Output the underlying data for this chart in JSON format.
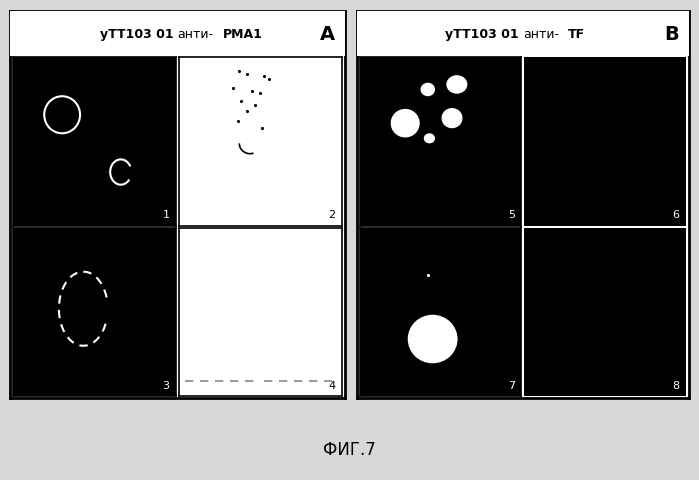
{
  "fig_width": 6.99,
  "fig_height": 4.81,
  "bg_color": "#d8d8d8",
  "title_A": "yTT103 01 анти-PMA1",
  "title_A_bold_part": "yTT103 01 ",
  "title_A_normal_part": "анти-",
  "title_A_bold2": "PMA1",
  "title_B": "yTT103 01 анти-TF",
  "title_B_bold_part": "yTT103 01 ",
  "title_B_normal_part": "анти-",
  "title_B_bold2": "TF",
  "label_A": "A",
  "label_B": "B",
  "caption": "ФИГ.7",
  "panel_labels": [
    "1",
    "2",
    "3",
    "4",
    "5",
    "6",
    "7",
    "8"
  ]
}
